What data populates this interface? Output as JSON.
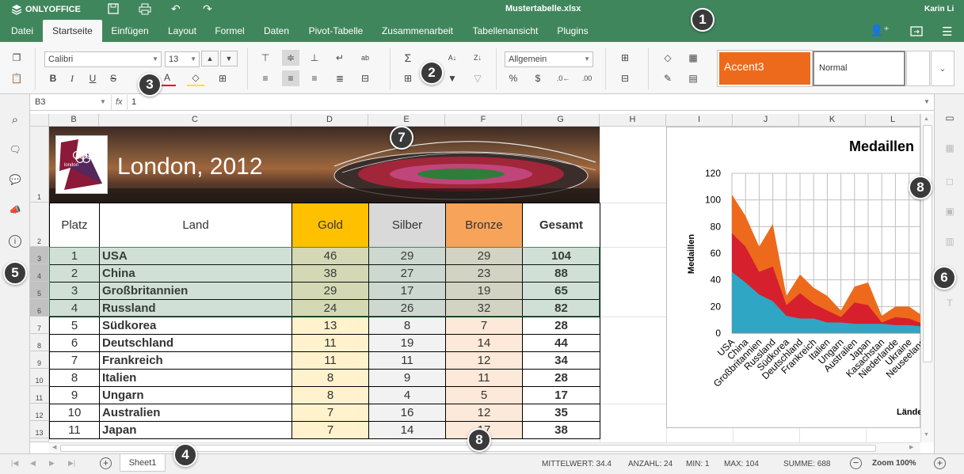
{
  "app": {
    "brand": "ONLYOFFICE",
    "file_name": "Mustertabelle.xlsx",
    "user": "Karin Li"
  },
  "menu_tabs": [
    "Datei",
    "Startseite",
    "Einfügen",
    "Layout",
    "Formel",
    "Daten",
    "Pivot-Tabelle",
    "Zusammenarbeit",
    "Tabellenansicht",
    "Plugins"
  ],
  "ribbon": {
    "font_name": "Calibri",
    "font_size": "13",
    "number_format": "Allgemein",
    "style_accent": "Accent3",
    "style_normal": "Normal"
  },
  "formula": {
    "cell_ref": "B3",
    "fx": "fx",
    "value": "1"
  },
  "columns": [
    "B",
    "C",
    "D",
    "E",
    "F",
    "G",
    "H",
    "I",
    "J",
    "K",
    "L"
  ],
  "rows": [
    "1",
    "2",
    "3",
    "4",
    "5",
    "6",
    "7",
    "8",
    "9",
    "10",
    "11",
    "12",
    "13",
    "14"
  ],
  "banner": {
    "title": "London, 2012",
    "logo_text": "london"
  },
  "table": {
    "headers": [
      "Platz",
      "Land",
      "Gold",
      "Silber",
      "Bronze",
      "Gesamt"
    ],
    "rows": [
      [
        "1",
        "USA",
        "46",
        "29",
        "29",
        "104"
      ],
      [
        "2",
        "China",
        "38",
        "27",
        "23",
        "88"
      ],
      [
        "3",
        "Großbritannien",
        "29",
        "17",
        "19",
        "65"
      ],
      [
        "4",
        "Russland",
        "24",
        "26",
        "32",
        "82"
      ],
      [
        "5",
        "Südkorea",
        "13",
        "8",
        "7",
        "28"
      ],
      [
        "6",
        "Deutschland",
        "11",
        "19",
        "14",
        "44"
      ],
      [
        "7",
        "Frankreich",
        "11",
        "11",
        "12",
        "34"
      ],
      [
        "8",
        "Italien",
        "8",
        "9",
        "11",
        "28"
      ],
      [
        "9",
        "Ungarn",
        "8",
        "4",
        "5",
        "17"
      ],
      [
        "10",
        "Australien",
        "7",
        "16",
        "12",
        "35"
      ],
      [
        "11",
        "Japan",
        "7",
        "14",
        "17",
        "38"
      ]
    ]
  },
  "chart_data": {
    "type": "area",
    "title": "Medaillen",
    "xlabel": "Länder",
    "ylabel": "Medaillen",
    "ylim": [
      0,
      120
    ],
    "yticks": [
      "0",
      "20",
      "40",
      "60",
      "80",
      "100",
      "120"
    ],
    "categories": [
      "USA",
      "China",
      "Großbritannien",
      "Russland",
      "Südkorea",
      "Deutschland",
      "Frankreich",
      "Italien",
      "Ungarn",
      "Australien",
      "Japan",
      "Kasachstan",
      "Niederlande",
      "Ukraine",
      "Neuseeland"
    ],
    "series": [
      {
        "name": "Gold",
        "color": "#2fa6c3",
        "values": [
          46,
          38,
          29,
          24,
          13,
          11,
          11,
          8,
          8,
          7,
          7,
          7,
          6,
          6,
          5
        ]
      },
      {
        "name": "Silber",
        "color": "#d6202e",
        "values": [
          29,
          27,
          17,
          26,
          8,
          19,
          11,
          9,
          4,
          16,
          14,
          1,
          6,
          5,
          2
        ]
      },
      {
        "name": "Bronze",
        "color": "#ed6a1c",
        "values": [
          29,
          23,
          19,
          32,
          7,
          14,
          12,
          11,
          5,
          12,
          17,
          5,
          8,
          9,
          6
        ]
      }
    ]
  },
  "status": {
    "sheet": "Sheet1",
    "avg": "MITTELWERT: 34.4",
    "count": "ANZAHL: 24",
    "min": "MIN: 1",
    "max": "MAX: 104",
    "sum": "SUMME: 688",
    "zoom": "Zoom 100%"
  },
  "badges": [
    "1",
    "2",
    "3",
    "4",
    "5",
    "6",
    "7",
    "8",
    "8"
  ]
}
